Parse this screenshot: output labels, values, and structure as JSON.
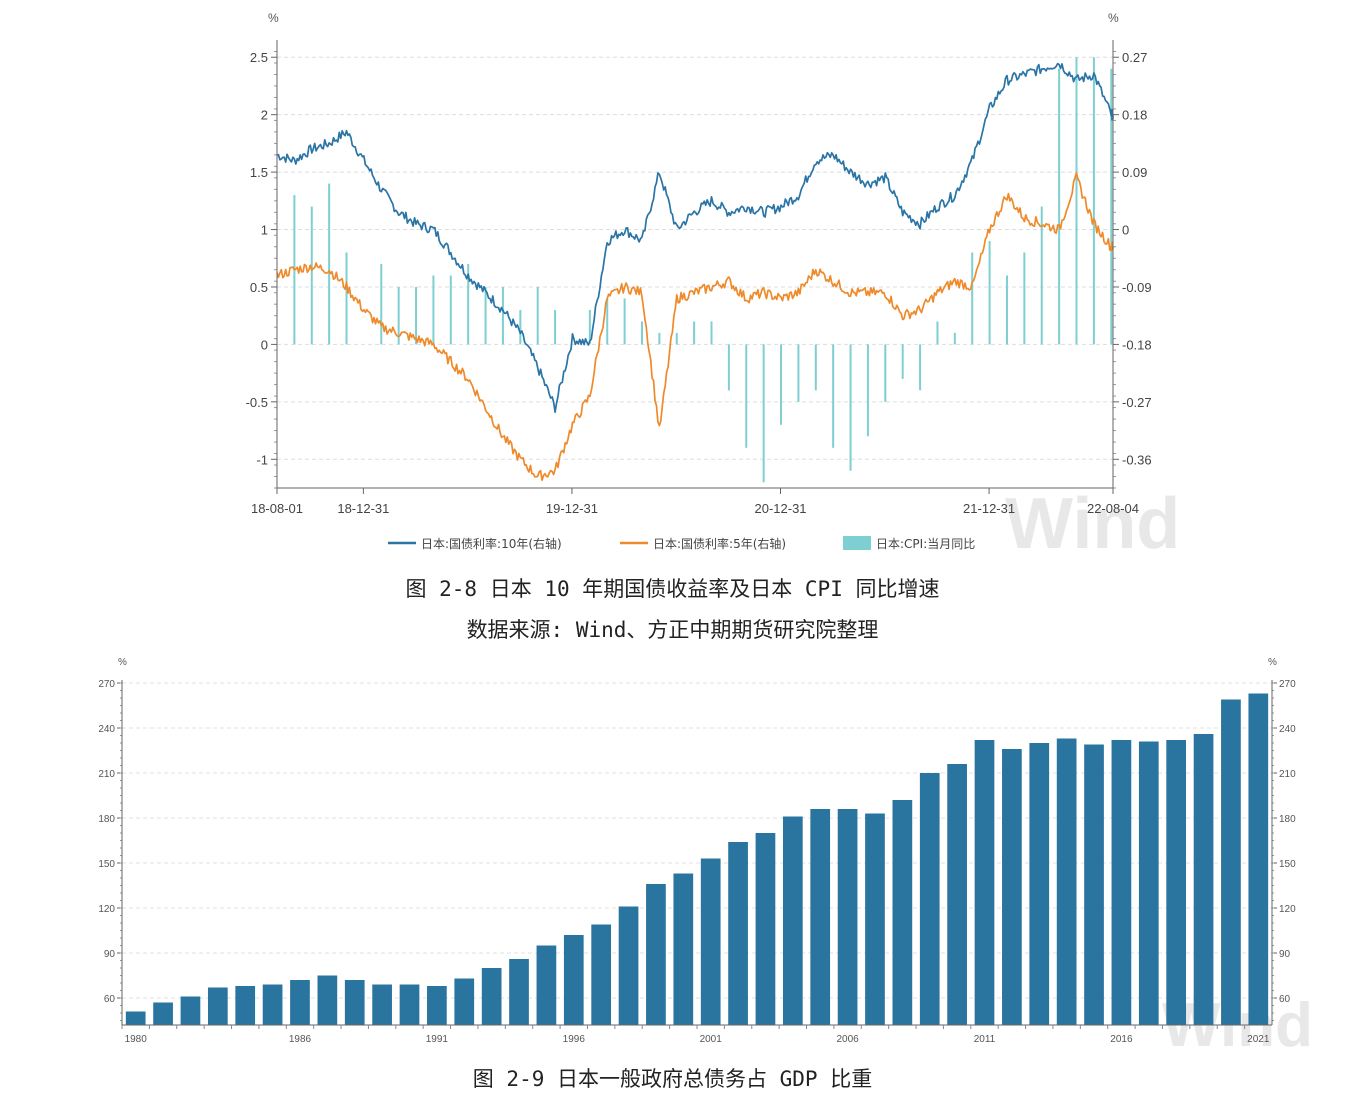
{
  "chart_data": [
    {
      "type": "line",
      "unit_left": "%",
      "unit_right": "%",
      "ylim_left": [
        -1.25,
        2.65
      ],
      "left_ticks": [
        "2.5",
        "2",
        "1.5",
        "1",
        "0.5",
        "0",
        "-0.5",
        "-1"
      ],
      "left_tick_values": [
        2.5,
        2,
        1.5,
        1,
        0.5,
        0,
        -0.5,
        -1
      ],
      "right_ticks": [
        "0.27",
        "0.18",
        "0.09",
        "0",
        "-0.09",
        "-0.18",
        "-0.27",
        "-0.36"
      ],
      "right_tick_values": [
        0.27,
        0.18,
        0.09,
        0,
        -0.09,
        -0.18,
        -0.27,
        -0.36
      ],
      "x_ticks": [
        "18-08-01",
        "18-12-31",
        "19-12-31",
        "20-12-31",
        "21-12-31",
        "22-08-04"
      ],
      "x_tick_months": [
        0,
        4.97,
        16.97,
        28.97,
        40.97,
        48.1
      ],
      "x_range_months": [
        0,
        48.1
      ],
      "legend": [
        "日本:国债利率:10年(右轴)",
        "日本:国债利率:5年(右轴)",
        "日本:CPI:当月同比"
      ],
      "series": [
        {
          "name": "日本:国债利率:10年(右轴)",
          "color": "#2a74a6",
          "axis": "left",
          "x_months": [
            0,
            1,
            2,
            3,
            4,
            5,
            6,
            7,
            8,
            9,
            10,
            11,
            12,
            13,
            14,
            15,
            16,
            17,
            18,
            19,
            20,
            21,
            22,
            23,
            24,
            25,
            26,
            27,
            28,
            29,
            30,
            31,
            32,
            33,
            34,
            35,
            36,
            37,
            38,
            39,
            40,
            41,
            42,
            43,
            44,
            45,
            46,
            47,
            48,
            48.1
          ],
          "values": [
            1.65,
            1.6,
            1.7,
            1.75,
            1.85,
            1.6,
            1.35,
            1.15,
            1.05,
            1.0,
            0.8,
            0.6,
            0.45,
            0.3,
            0.1,
            -0.2,
            -0.55,
            0.05,
            0.0,
            0.9,
            1.0,
            0.9,
            1.5,
            1.0,
            1.15,
            1.25,
            1.15,
            1.2,
            1.15,
            1.2,
            1.3,
            1.6,
            1.65,
            1.5,
            1.4,
            1.45,
            1.15,
            1.05,
            1.2,
            1.3,
            1.6,
            2.05,
            2.3,
            2.35,
            2.4,
            2.45,
            2.3,
            2.35,
            2.0,
            2.0
          ]
        },
        {
          "name": "日本:国债利率:5年(右轴)",
          "color": "#ef8a2b",
          "axis": "left",
          "x_months": [
            0,
            1,
            2,
            3,
            4,
            5,
            6,
            7,
            8,
            9,
            10,
            11,
            12,
            13,
            14,
            15,
            16,
            17,
            18,
            19,
            20,
            21,
            22,
            23,
            24,
            25,
            26,
            27,
            28,
            29,
            30,
            31,
            32,
            33,
            34,
            35,
            36,
            37,
            38,
            39,
            40,
            41,
            42,
            43,
            44,
            45,
            46,
            47,
            48,
            48.1
          ],
          "values": [
            0.6,
            0.65,
            0.68,
            0.65,
            0.5,
            0.3,
            0.15,
            0.1,
            0.05,
            0.0,
            -0.15,
            -0.3,
            -0.55,
            -0.8,
            -1.0,
            -1.15,
            -1.1,
            -0.7,
            -0.45,
            0.4,
            0.5,
            0.45,
            -0.75,
            0.4,
            0.45,
            0.5,
            0.55,
            0.4,
            0.45,
            0.4,
            0.45,
            0.65,
            0.55,
            0.45,
            0.45,
            0.45,
            0.25,
            0.3,
            0.45,
            0.55,
            0.5,
            1.0,
            1.3,
            1.1,
            1.05,
            1.0,
            1.45,
            1.05,
            0.85,
            0.85
          ]
        },
        {
          "name": "日本:CPI:当月同比",
          "type": "bar",
          "color": "#7ecfd1",
          "axis": "left",
          "x_months": [
            1,
            2,
            3,
            4,
            6,
            7,
            8,
            9,
            10,
            11,
            12,
            13,
            14,
            15,
            16,
            18,
            19,
            20,
            21,
            22,
            23,
            24,
            25,
            26,
            27,
            28,
            29,
            30,
            31,
            32,
            33,
            34,
            35,
            36,
            37,
            38,
            39,
            40,
            41,
            42,
            43,
            44,
            45,
            46,
            47,
            48
          ],
          "values": [
            1.3,
            1.2,
            1.4,
            0.8,
            0.7,
            0.5,
            0.5,
            0.6,
            0.6,
            0.7,
            0.5,
            0.5,
            0.3,
            0.5,
            0.3,
            0.3,
            0.4,
            0.4,
            0.2,
            0.1,
            0.1,
            0.2,
            0.2,
            -0.4,
            -0.9,
            -1.2,
            -0.7,
            -0.5,
            -0.4,
            -0.9,
            -1.1,
            -0.8,
            -0.5,
            -0.3,
            -0.4,
            0.2,
            0.1,
            0.8,
            0.9,
            0.6,
            0.8,
            1.2,
            2.4,
            2.5,
            2.5,
            2.4
          ]
        }
      ]
    },
    {
      "type": "bar",
      "unit_left": "%",
      "unit_right": "%",
      "ylim": [
        42,
        272
      ],
      "y_ticks": [
        "270",
        "240",
        "210",
        "180",
        "150",
        "120",
        "90",
        "60"
      ],
      "y_tick_values": [
        270,
        240,
        210,
        180,
        150,
        120,
        90,
        60
      ],
      "x_ticks": [
        "1980",
        "1986",
        "1991",
        "1996",
        "2001",
        "2006",
        "2011",
        "2016",
        "2021"
      ],
      "x_tick_years": [
        1980,
        1986,
        1991,
        1996,
        2001,
        2006,
        2011,
        2016,
        2021
      ],
      "color": "#2a75a0",
      "categories": [
        1980,
        1981,
        1982,
        1983,
        1984,
        1985,
        1986,
        1987,
        1988,
        1989,
        1990,
        1991,
        1992,
        1993,
        1994,
        1995,
        1996,
        1997,
        1998,
        1999,
        2000,
        2001,
        2002,
        2003,
        2004,
        2005,
        2006,
        2007,
        2008,
        2009,
        2010,
        2011,
        2012,
        2013,
        2014,
        2015,
        2016,
        2017,
        2018,
        2019,
        2020,
        2021
      ],
      "values": [
        51,
        57,
        61,
        67,
        68,
        69,
        72,
        75,
        72,
        69,
        69,
        68,
        73,
        80,
        86,
        95,
        102,
        109,
        121,
        136,
        143,
        153,
        164,
        170,
        181,
        186,
        186,
        183,
        192,
        210,
        216,
        232,
        226,
        230,
        233,
        229,
        232,
        231,
        232,
        236,
        259,
        263
      ]
    }
  ],
  "captions": {
    "fig1_title": "图 2-8 日本 10 年期国债收益率及日本 CPI 同比增速",
    "fig1_source": "数据来源: Wind、方正中期期货研究院整理",
    "fig2_title": "图 2-9 日本一般政府总债务占 GDP 比重"
  },
  "watermark": "Wind"
}
